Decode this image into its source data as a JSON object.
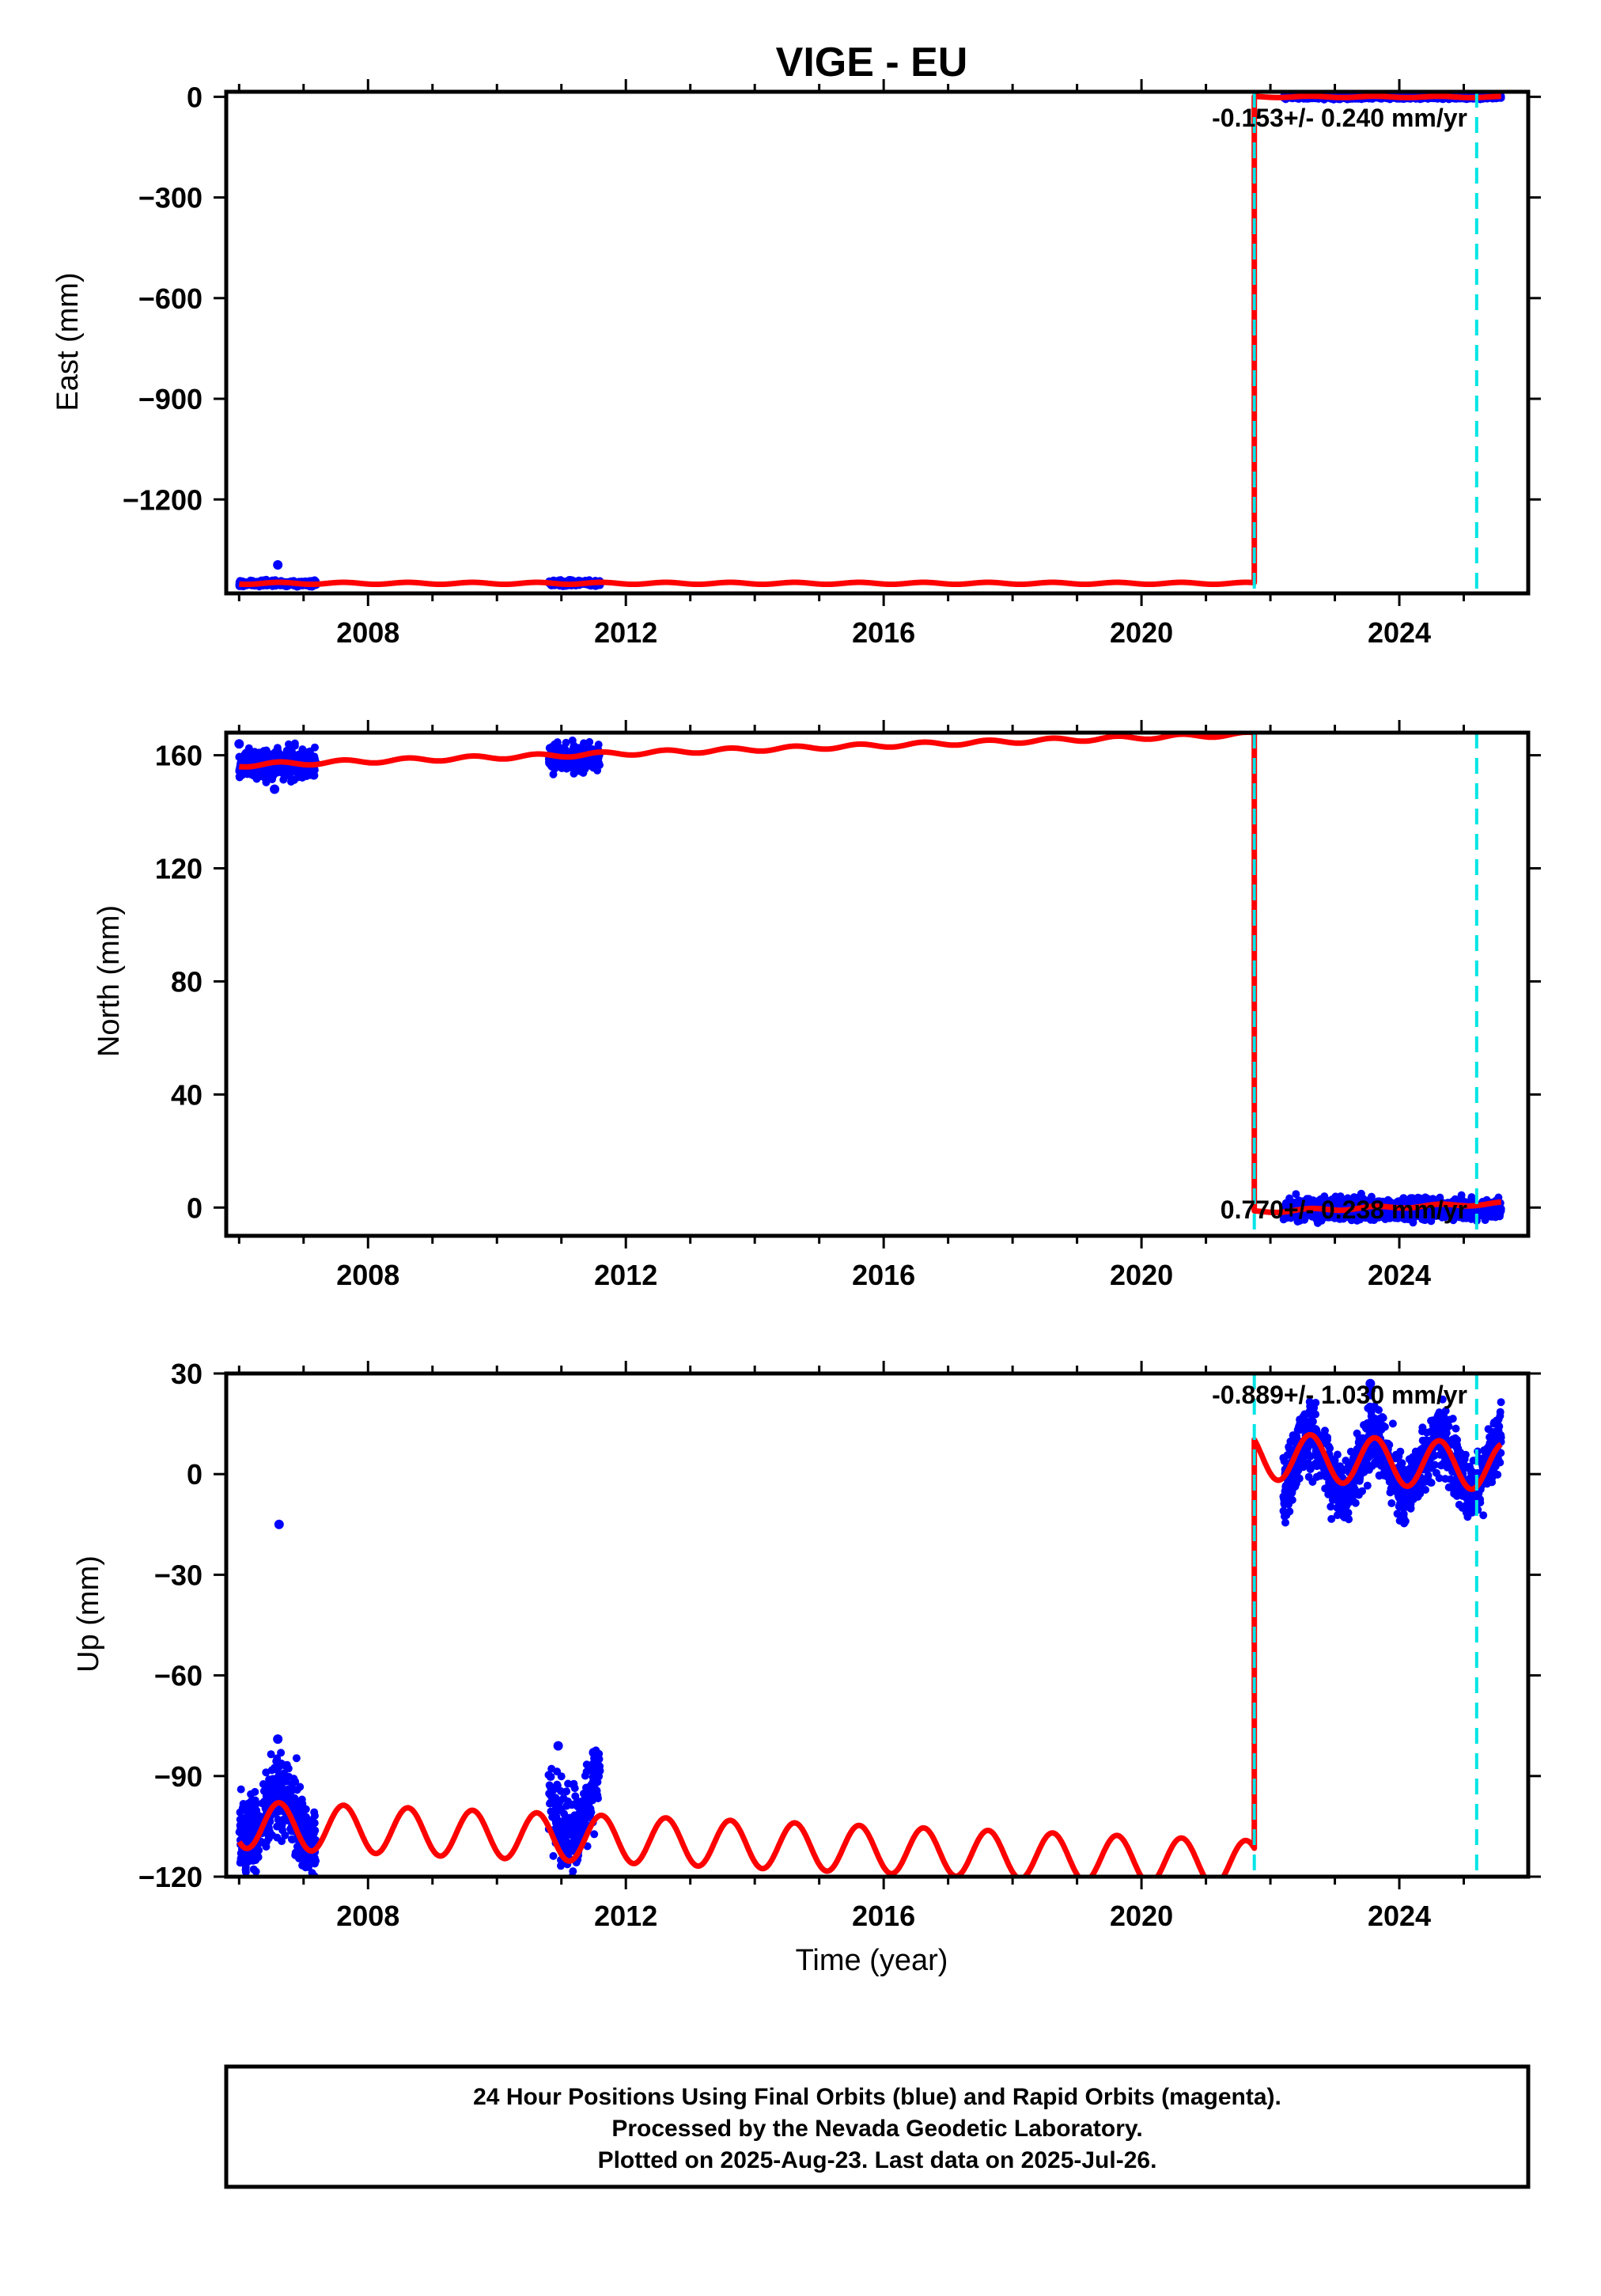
{
  "figure_title": "VIGE - EU",
  "footer": {
    "line1": "24 Hour Positions Using Final Orbits (blue) and Rapid Orbits (magenta).",
    "line2": "Processed by the Nevada Geodetic Laboratory.",
    "line3": "Plotted on 2025-Aug-23. Last data on 2025-Jul-26."
  },
  "colors": {
    "final_orbits": "#0000ff",
    "rapid_orbits": "#cc00cc",
    "model": "#ff0000",
    "event_line": "#00e5e5",
    "frame": "#000000"
  },
  "chart_data": [
    {
      "type": "scatter",
      "name": "east",
      "title": "VIGE - EU",
      "ylabel": "East (mm)",
      "xlabel": "",
      "xlim": [
        2005.8,
        2026.0
      ],
      "ylim": [
        -1480,
        15
      ],
      "yticks": [
        0,
        -300,
        -600,
        -900,
        -1200
      ],
      "xticks": [
        2008,
        2012,
        2016,
        2020,
        2024
      ],
      "grid": false,
      "offset_epoch": 2021.75,
      "vertical_lines": [
        2021.75,
        2025.2
      ],
      "rate_label": "-0.153+/- 0.240 mm/yr",
      "model": {
        "before": {
          "start": 2006.0,
          "end": 2021.75,
          "value": -1450,
          "amplitude": 3,
          "trend": 0
        },
        "after": {
          "start": 2021.75,
          "end": 2025.58,
          "value": 0,
          "amplitude": 2,
          "trend": -0.153
        }
      },
      "observations": [
        {
          "start": 2006.0,
          "end": 2007.2,
          "center": -1450,
          "spread": 4,
          "outliers": [
            [
              2006.6,
              -1395
            ]
          ]
        },
        {
          "start": 2010.8,
          "end": 2011.6,
          "center": -1450,
          "spread": 4
        },
        {
          "start": 2022.2,
          "end": 2025.58,
          "center": 0,
          "spread": 3
        }
      ]
    },
    {
      "type": "scatter",
      "name": "north",
      "ylabel": "North (mm)",
      "xlabel": "",
      "xlim": [
        2005.8,
        2026.0
      ],
      "ylim": [
        -10,
        168
      ],
      "yticks": [
        160,
        120,
        80,
        40,
        0
      ],
      "xticks": [
        2008,
        2012,
        2016,
        2020,
        2024
      ],
      "grid": false,
      "offset_epoch": 2021.75,
      "vertical_lines": [
        2021.75,
        2025.2
      ],
      "rate_label": "0.770+/- 0.238 mm/yr",
      "model": {
        "before": {
          "start": 2006.0,
          "end": 2021.75,
          "value": 156.5,
          "amplitude": 0.7,
          "trend": 0.7
        },
        "after": {
          "start": 2021.75,
          "end": 2025.58,
          "value": -1.5,
          "amplitude": 0.5,
          "trend": 0.77
        }
      },
      "observations": [
        {
          "start": 2006.0,
          "end": 2007.2,
          "center": 157,
          "spread": 2.5,
          "outliers": [
            [
              2006.0,
              164
            ],
            [
              2006.55,
              148
            ]
          ]
        },
        {
          "start": 2010.8,
          "end": 2011.6,
          "center": 159,
          "spread": 2.5
        },
        {
          "start": 2022.2,
          "end": 2025.58,
          "center": -0.5,
          "spread": 1.8
        }
      ]
    },
    {
      "type": "scatter",
      "name": "up",
      "ylabel": "Up (mm)",
      "xlabel": "Time (year)",
      "xlim": [
        2005.8,
        2026.0
      ],
      "ylim": [
        -120,
        30
      ],
      "yticks": [
        30,
        0,
        -30,
        -60,
        -90,
        -120
      ],
      "xticks": [
        2008,
        2012,
        2016,
        2020,
        2024
      ],
      "grid": false,
      "offset_epoch": 2021.75,
      "vertical_lines": [
        2021.75,
        2025.2
      ],
      "rate_label": "-0.889+/- 1.030 mm/yr",
      "model": {
        "before": {
          "start": 2006.0,
          "end": 2021.75,
          "value": -104.5,
          "amplitude": 7,
          "trend": -0.75,
          "phase_year": 2006.62
        },
        "after": {
          "start": 2021.75,
          "end": 2025.58,
          "value": 5.5,
          "amplitude": 7,
          "trend": -0.889,
          "phase_year": 2022.62
        }
      },
      "observations": [
        {
          "start": 2006.0,
          "end": 2007.2,
          "center": -102,
          "spread": 6,
          "seasonal": 8,
          "outliers": [
            [
              2006.62,
              -15
            ],
            [
              2006.6,
              -79
            ]
          ]
        },
        {
          "start": 2010.8,
          "end": 2011.6,
          "center": -99,
          "spread": 6,
          "seasonal": 8,
          "outliers": [
            [
              2010.95,
              -81
            ],
            [
              2011.5,
              -83
            ]
          ]
        },
        {
          "start": 2022.2,
          "end": 2025.58,
          "center": 3,
          "spread": 5,
          "seasonal": 8,
          "outliers": [
            [
              2023.55,
              27
            ]
          ]
        }
      ]
    }
  ]
}
